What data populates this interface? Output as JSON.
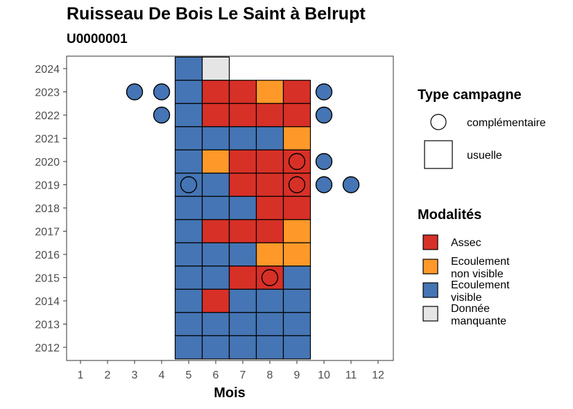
{
  "title": "Ruisseau De Bois Le Saint à Belrupt",
  "subtitle": "U0000001",
  "colors": {
    "assec": "#d73027",
    "ecoulement_non_visible": "#fe9929",
    "ecoulement_visible": "#4575b4",
    "donnee_manquante": "#e5e5e5"
  },
  "legend_type": {
    "title": "Type campagne",
    "items": [
      {
        "shape": "circle",
        "label": "complémentaire"
      },
      {
        "shape": "square",
        "label": "usuelle"
      }
    ]
  },
  "legend_modalites": {
    "title": "Modalités",
    "items": [
      {
        "key": "assec",
        "label_lines": [
          "Assec"
        ]
      },
      {
        "key": "ecoulement_non_visible",
        "label_lines": [
          "Ecoulement",
          "non visible"
        ]
      },
      {
        "key": "ecoulement_visible",
        "label_lines": [
          "Ecoulement",
          "visible"
        ]
      },
      {
        "key": "donnee_manquante",
        "label_lines": [
          "Donnée",
          "manquante"
        ]
      }
    ]
  },
  "chart_data": {
    "type": "heatmap",
    "xlabel": "Mois",
    "ylabel": "",
    "x_ticks": [
      1,
      2,
      3,
      4,
      5,
      6,
      7,
      8,
      9,
      10,
      11,
      12
    ],
    "y_ticks": [
      2012,
      2013,
      2014,
      2015,
      2016,
      2017,
      2018,
      2019,
      2020,
      2021,
      2022,
      2023,
      2024
    ],
    "tiles": [
      {
        "year": 2024,
        "month": 5,
        "modalite": "ecoulement_visible"
      },
      {
        "year": 2024,
        "month": 6,
        "modalite": "donnee_manquante"
      },
      {
        "year": 2023,
        "month": 5,
        "modalite": "ecoulement_visible"
      },
      {
        "year": 2023,
        "month": 6,
        "modalite": "assec"
      },
      {
        "year": 2023,
        "month": 7,
        "modalite": "assec"
      },
      {
        "year": 2023,
        "month": 8,
        "modalite": "ecoulement_non_visible"
      },
      {
        "year": 2023,
        "month": 9,
        "modalite": "assec"
      },
      {
        "year": 2022,
        "month": 5,
        "modalite": "ecoulement_visible"
      },
      {
        "year": 2022,
        "month": 6,
        "modalite": "assec"
      },
      {
        "year": 2022,
        "month": 7,
        "modalite": "assec"
      },
      {
        "year": 2022,
        "month": 8,
        "modalite": "assec"
      },
      {
        "year": 2022,
        "month": 9,
        "modalite": "assec"
      },
      {
        "year": 2021,
        "month": 5,
        "modalite": "ecoulement_visible"
      },
      {
        "year": 2021,
        "month": 6,
        "modalite": "ecoulement_visible"
      },
      {
        "year": 2021,
        "month": 7,
        "modalite": "ecoulement_visible"
      },
      {
        "year": 2021,
        "month": 8,
        "modalite": "ecoulement_visible"
      },
      {
        "year": 2021,
        "month": 9,
        "modalite": "ecoulement_non_visible"
      },
      {
        "year": 2020,
        "month": 5,
        "modalite": "ecoulement_visible"
      },
      {
        "year": 2020,
        "month": 6,
        "modalite": "ecoulement_non_visible"
      },
      {
        "year": 2020,
        "month": 7,
        "modalite": "assec"
      },
      {
        "year": 2020,
        "month": 8,
        "modalite": "assec"
      },
      {
        "year": 2020,
        "month": 9,
        "modalite": "assec"
      },
      {
        "year": 2019,
        "month": 5,
        "modalite": "ecoulement_visible"
      },
      {
        "year": 2019,
        "month": 6,
        "modalite": "ecoulement_visible"
      },
      {
        "year": 2019,
        "month": 7,
        "modalite": "assec"
      },
      {
        "year": 2019,
        "month": 8,
        "modalite": "assec"
      },
      {
        "year": 2019,
        "month": 9,
        "modalite": "assec"
      },
      {
        "year": 2018,
        "month": 5,
        "modalite": "ecoulement_visible"
      },
      {
        "year": 2018,
        "month": 6,
        "modalite": "ecoulement_visible"
      },
      {
        "year": 2018,
        "month": 7,
        "modalite": "ecoulement_visible"
      },
      {
        "year": 2018,
        "month": 8,
        "modalite": "assec"
      },
      {
        "year": 2018,
        "month": 9,
        "modalite": "assec"
      },
      {
        "year": 2017,
        "month": 5,
        "modalite": "ecoulement_visible"
      },
      {
        "year": 2017,
        "month": 6,
        "modalite": "assec"
      },
      {
        "year": 2017,
        "month": 7,
        "modalite": "assec"
      },
      {
        "year": 2017,
        "month": 8,
        "modalite": "assec"
      },
      {
        "year": 2017,
        "month": 9,
        "modalite": "ecoulement_non_visible"
      },
      {
        "year": 2016,
        "month": 5,
        "modalite": "ecoulement_visible"
      },
      {
        "year": 2016,
        "month": 6,
        "modalite": "ecoulement_visible"
      },
      {
        "year": 2016,
        "month": 7,
        "modalite": "ecoulement_visible"
      },
      {
        "year": 2016,
        "month": 8,
        "modalite": "ecoulement_non_visible"
      },
      {
        "year": 2016,
        "month": 9,
        "modalite": "ecoulement_non_visible"
      },
      {
        "year": 2015,
        "month": 5,
        "modalite": "ecoulement_visible"
      },
      {
        "year": 2015,
        "month": 6,
        "modalite": "ecoulement_visible"
      },
      {
        "year": 2015,
        "month": 7,
        "modalite": "assec"
      },
      {
        "year": 2015,
        "month": 8,
        "modalite": "assec"
      },
      {
        "year": 2015,
        "month": 9,
        "modalite": "ecoulement_visible"
      },
      {
        "year": 2014,
        "month": 5,
        "modalite": "ecoulement_visible"
      },
      {
        "year": 2014,
        "month": 6,
        "modalite": "assec"
      },
      {
        "year": 2014,
        "month": 7,
        "modalite": "ecoulement_visible"
      },
      {
        "year": 2014,
        "month": 8,
        "modalite": "ecoulement_visible"
      },
      {
        "year": 2014,
        "month": 9,
        "modalite": "ecoulement_visible"
      },
      {
        "year": 2013,
        "month": 5,
        "modalite": "ecoulement_visible"
      },
      {
        "year": 2013,
        "month": 6,
        "modalite": "ecoulement_visible"
      },
      {
        "year": 2013,
        "month": 7,
        "modalite": "ecoulement_visible"
      },
      {
        "year": 2013,
        "month": 8,
        "modalite": "ecoulement_visible"
      },
      {
        "year": 2013,
        "month": 9,
        "modalite": "ecoulement_visible"
      },
      {
        "year": 2012,
        "month": 5,
        "modalite": "ecoulement_visible"
      },
      {
        "year": 2012,
        "month": 6,
        "modalite": "ecoulement_visible"
      },
      {
        "year": 2012,
        "month": 7,
        "modalite": "ecoulement_visible"
      },
      {
        "year": 2012,
        "month": 8,
        "modalite": "ecoulement_visible"
      },
      {
        "year": 2012,
        "month": 9,
        "modalite": "ecoulement_visible"
      }
    ],
    "points": [
      {
        "year": 2023,
        "month": 3,
        "modalite": "ecoulement_visible"
      },
      {
        "year": 2023,
        "month": 4,
        "modalite": "ecoulement_visible"
      },
      {
        "year": 2023,
        "month": 10,
        "modalite": "ecoulement_visible"
      },
      {
        "year": 2022,
        "month": 4,
        "modalite": "ecoulement_visible"
      },
      {
        "year": 2022,
        "month": 10,
        "modalite": "ecoulement_visible"
      },
      {
        "year": 2020,
        "month": 9,
        "modalite": "assec"
      },
      {
        "year": 2020,
        "month": 10,
        "modalite": "ecoulement_visible"
      },
      {
        "year": 2019,
        "month": 5,
        "modalite": "ecoulement_visible"
      },
      {
        "year": 2019,
        "month": 9,
        "modalite": "assec"
      },
      {
        "year": 2019,
        "month": 10,
        "modalite": "ecoulement_visible"
      },
      {
        "year": 2019,
        "month": 11,
        "modalite": "ecoulement_visible"
      },
      {
        "year": 2015,
        "month": 8,
        "modalite": "assec"
      }
    ]
  }
}
